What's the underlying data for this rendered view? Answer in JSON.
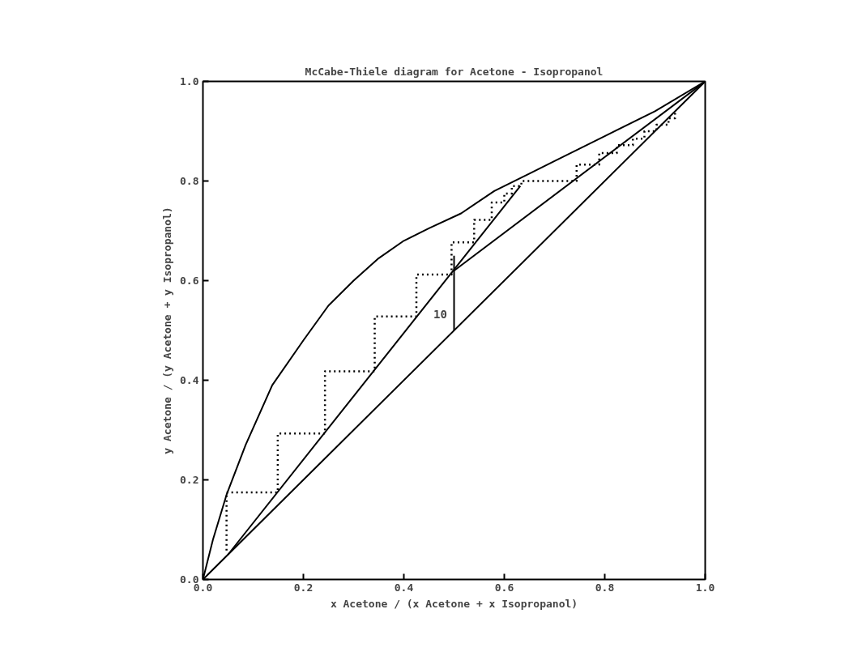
{
  "chart_data": {
    "type": "line",
    "title": "McCabe-Thiele diagram for Acetone - Isopropanol",
    "xlabel": "x Acetone / (x Acetone + x Isopropanol)",
    "ylabel": "y Acetone / (y Acetone + y Isopropanol)",
    "xlim": [
      0,
      1
    ],
    "ylim": [
      0,
      1
    ],
    "xticks": [
      {
        "value": 0,
        "label": "0.0"
      },
      0.2,
      0.4,
      0.6,
      0.8,
      {
        "value": 1,
        "label": "1.0"
      }
    ],
    "yticks": [
      {
        "value": 0,
        "label": "0.0"
      },
      0.2,
      0.4,
      0.6,
      0.8,
      {
        "value": 1,
        "label": "1.0"
      }
    ],
    "grid": false,
    "marker": "none",
    "series": [
      {
        "color": "#000000",
        "line_style": "solid",
        "x": [
          0,
          0.02,
          0.047,
          0.085,
          0.138,
          0.2,
          0.25,
          0.3,
          0.35,
          0.4,
          0.45,
          0.514,
          0.58,
          0.65,
          0.7,
          0.8,
          0.9,
          1
        ],
        "values": [
          0,
          0.08,
          0.17,
          0.27,
          0.39,
          0.48,
          0.55,
          0.6,
          0.645,
          0.68,
          0.705,
          0.735,
          0.78,
          0.815,
          0.84,
          0.89,
          0.94,
          1
        ]
      },
      {
        "color": "#000000",
        "line_style": "solid",
        "x": [
          0,
          1
        ],
        "values": [
          0,
          1
        ]
      },
      {
        "color": "#000000",
        "line_style": "solid",
        "x": [
          0.5,
          1
        ],
        "values": [
          0.62,
          1
        ]
      },
      {
        "color": "#000000",
        "line_style": "solid",
        "x": [
          0.05,
          0.632
        ],
        "values": [
          0.05,
          0.79
        ]
      },
      {
        "color": "#000000",
        "line_style": "solid",
        "x": [
          0.5,
          0.5
        ],
        "values": [
          0.5,
          0.65
        ]
      },
      {
        "color": "#000000",
        "line_style": "dotted",
        "x": [
          0.047,
          0.047,
          0.149,
          0.149,
          0.243,
          0.243,
          0.342,
          0.342,
          0.425,
          0.425,
          0.495,
          0.495,
          0.54,
          0.54,
          0.575,
          0.575,
          0.6,
          0.6,
          0.615,
          0.615,
          0.634,
          0.634,
          0.744,
          0.744,
          0.789,
          0.789,
          0.824,
          0.824,
          0.856,
          0.856,
          0.879,
          0.879,
          0.903,
          0.903,
          0.927,
          0.927,
          0.94,
          0.94
        ],
        "values": [
          0.058,
          0.175,
          0.175,
          0.293,
          0.293,
          0.418,
          0.418,
          0.528,
          0.528,
          0.612,
          0.612,
          0.677,
          0.677,
          0.722,
          0.722,
          0.757,
          0.757,
          0.775,
          0.775,
          0.79,
          0.79,
          0.8,
          0.8,
          0.833,
          0.833,
          0.856,
          0.856,
          0.872,
          0.872,
          0.885,
          0.885,
          0.9,
          0.9,
          0.913,
          0.913,
          0.926,
          0.926,
          0.937
        ]
      }
    ],
    "annotations": [
      "10"
    ]
  }
}
